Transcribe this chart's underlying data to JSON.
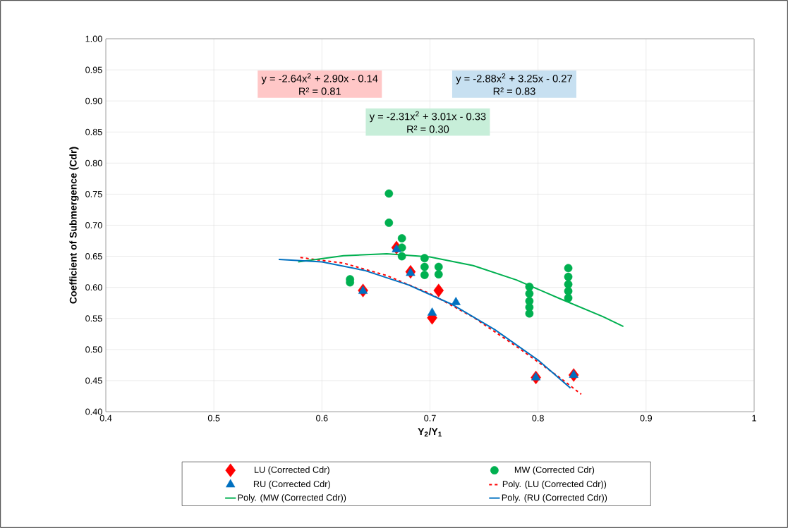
{
  "chart_data": {
    "type": "scatter",
    "xlabel": "Y$_{2}$/Y$_{1}$",
    "ylabel": "Coefficient of Submergence (Cdr)",
    "xlim": [
      0.4,
      1.0
    ],
    "xticks": [
      0.4,
      0.5,
      0.6,
      0.7,
      0.8,
      0.9,
      1
    ],
    "ylim": [
      0.4,
      1.0
    ],
    "yticks": [
      {
        "value": 0.4,
        "label": "0.40"
      },
      {
        "value": 0.45,
        "label": "0.45"
      },
      {
        "value": 0.5,
        "label": "0.50"
      },
      {
        "value": 0.55,
        "label": "0.55"
      },
      {
        "value": 0.6,
        "label": "0.60"
      },
      {
        "value": 0.65,
        "label": "0.65"
      },
      {
        "value": 0.7,
        "label": "0.70"
      },
      {
        "value": 0.75,
        "label": "0.75"
      },
      {
        "value": 0.8,
        "label": "0.80"
      },
      {
        "value": 0.85,
        "label": "0.85"
      },
      {
        "value": 0.9,
        "label": "0.90"
      },
      {
        "value": 0.95,
        "label": "0.95"
      },
      {
        "value": 1.0,
        "label": "1.00"
      }
    ],
    "grid": true,
    "legend": "bottom",
    "series": [
      {
        "name": "LU (Corrected Cdr)",
        "marker": "diamond",
        "color": "#ff0000",
        "x": [
          0.638,
          0.669,
          0.682,
          0.702,
          0.708,
          0.798,
          0.833
        ],
        "values": [
          0.595,
          0.664,
          0.625,
          0.551,
          0.595,
          0.455,
          0.459
        ]
      },
      {
        "name": "MW (Corrected Cdr)",
        "marker": "circle",
        "color": "#00b050",
        "x": [
          0.626,
          0.626,
          0.662,
          0.662,
          0.674,
          0.674,
          0.674,
          0.695,
          0.695,
          0.695,
          0.708,
          0.708,
          0.792,
          0.792,
          0.792,
          0.792,
          0.792,
          0.828,
          0.828,
          0.828,
          0.828,
          0.828
        ],
        "values": [
          0.613,
          0.608,
          0.751,
          0.704,
          0.679,
          0.664,
          0.65,
          0.647,
          0.633,
          0.62,
          0.633,
          0.621,
          0.601,
          0.59,
          0.578,
          0.568,
          0.558,
          0.631,
          0.617,
          0.605,
          0.594,
          0.583
        ]
      },
      {
        "name": "RU (Corrected Cdr)",
        "marker": "triangle",
        "color": "#0070c0",
        "x": [
          0.638,
          0.669,
          0.682,
          0.702,
          0.724,
          0.798,
          0.833
        ],
        "values": [
          0.594,
          0.661,
          0.623,
          0.559,
          0.576,
          0.455,
          0.459
        ]
      },
      {
        "name": "Poly. (LU (Corrected Cdr))",
        "type": "line",
        "line_style": "dashed",
        "marker": "none",
        "color": "#ff0000",
        "x": [
          0.58,
          0.62,
          0.66,
          0.7,
          0.74,
          0.78,
          0.82,
          0.84
        ],
        "values": [
          0.648,
          0.639,
          0.619,
          0.59,
          0.552,
          0.505,
          0.455,
          0.428
        ]
      },
      {
        "name": "Poly. (MW (Corrected Cdr))",
        "type": "line",
        "line_style": "solid",
        "marker": "none",
        "color": "#00b050",
        "x": [
          0.578,
          0.62,
          0.66,
          0.7,
          0.74,
          0.78,
          0.82,
          0.86,
          0.879
        ],
        "values": [
          0.641,
          0.651,
          0.654,
          0.649,
          0.635,
          0.612,
          0.582,
          0.553,
          0.537
        ]
      },
      {
        "name": "Poly. (RU (Corrected Cdr))",
        "type": "line",
        "line_style": "solid",
        "marker": "none",
        "color": "#0070c0",
        "x": [
          0.56,
          0.6,
          0.64,
          0.68,
          0.72,
          0.76,
          0.8,
          0.83
        ],
        "values": [
          0.645,
          0.641,
          0.627,
          0.604,
          0.573,
          0.532,
          0.483,
          0.438
        ]
      }
    ],
    "annotations": [
      "y = -2.64x$^{2}$ + 2.90x - 0.14",
      "R² = 0.81",
      "y = -2.88x$^{2}$ + 3.25x - 0.27",
      "R² = 0.83",
      "y = -2.31x$^{2}$ + 3.01x - 0.33",
      "R² = 0.30"
    ]
  }
}
